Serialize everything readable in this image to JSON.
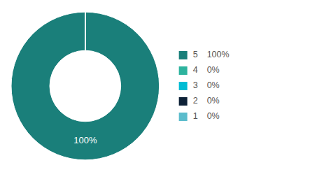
{
  "chart_data": {
    "type": "donut",
    "categories": [
      "5",
      "4",
      "3",
      "2",
      "1"
    ],
    "values": [
      100,
      0,
      0,
      0,
      0
    ],
    "value_labels": [
      "100%",
      "0%",
      "0%",
      "0%",
      "0%"
    ],
    "colors": [
      "#1a7f7a",
      "#2db39e",
      "#00bcd4",
      "#0d2137",
      "#5bbccc"
    ],
    "legend": "right",
    "annotations": [
      {
        "text": "100%",
        "color": "#ffffff"
      }
    ]
  }
}
